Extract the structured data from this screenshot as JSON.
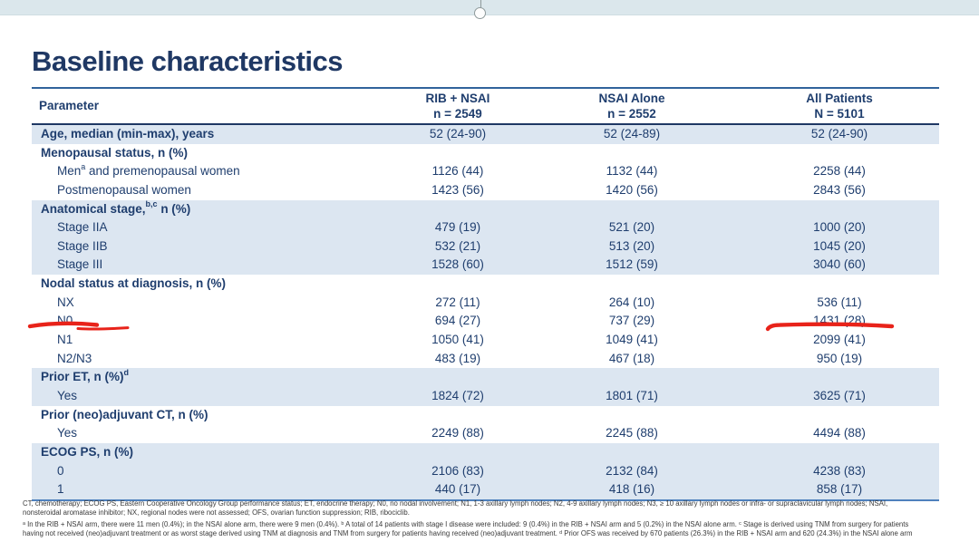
{
  "title": "Baseline characteristics",
  "colors": {
    "title_navy": "#1f3864",
    "table_text_navy": "#1f3e6e",
    "row_shade_blue": "#dce6f1",
    "border_blue": "#31639c",
    "annotation_red": "#e8231a"
  },
  "table": {
    "param_header": "Parameter",
    "columns": [
      {
        "name": "RIB + NSAI",
        "n": "n = 2549"
      },
      {
        "name": "NSAI Alone",
        "n": "n = 2552"
      },
      {
        "name": "All Patients",
        "n": "N = 5101"
      }
    ],
    "rows": [
      {
        "pre": "Age, median (min-max), years",
        "sup": "",
        "post": "",
        "bold": true,
        "indent": false,
        "shaded": true,
        "values": [
          "52 (24-90)",
          "52 (24-89)",
          "52 (24-90)"
        ]
      },
      {
        "pre": "Menopausal status, n (%)",
        "sup": "",
        "post": "",
        "bold": true,
        "indent": false,
        "shaded": false,
        "values": [
          "",
          "",
          ""
        ]
      },
      {
        "pre": "Men",
        "sup": "a",
        "post": " and premenopausal women",
        "bold": false,
        "indent": true,
        "shaded": false,
        "values": [
          "1126 (44)",
          "1132 (44)",
          "2258 (44)"
        ]
      },
      {
        "pre": "Postmenopausal women",
        "sup": "",
        "post": "",
        "bold": false,
        "indent": true,
        "shaded": false,
        "values": [
          "1423 (56)",
          "1420 (56)",
          "2843 (56)"
        ]
      },
      {
        "pre": "Anatomical stage,",
        "sup": "b,c",
        "post": " n (%)",
        "bold": true,
        "indent": false,
        "shaded": true,
        "values": [
          "",
          "",
          ""
        ]
      },
      {
        "pre": "Stage IIA",
        "sup": "",
        "post": "",
        "bold": false,
        "indent": true,
        "shaded": true,
        "values": [
          "479 (19)",
          "521 (20)",
          "1000 (20)"
        ]
      },
      {
        "pre": "Stage IIB",
        "sup": "",
        "post": "",
        "bold": false,
        "indent": true,
        "shaded": true,
        "values": [
          "532 (21)",
          "513 (20)",
          "1045 (20)"
        ]
      },
      {
        "pre": "Stage III",
        "sup": "",
        "post": "",
        "bold": false,
        "indent": true,
        "shaded": true,
        "values": [
          "1528 (60)",
          "1512 (59)",
          "3040 (60)"
        ]
      },
      {
        "pre": "Nodal status at diagnosis, n (%)",
        "sup": "",
        "post": "",
        "bold": true,
        "indent": false,
        "shaded": false,
        "values": [
          "",
          "",
          ""
        ]
      },
      {
        "pre": "NX",
        "sup": "",
        "post": "",
        "bold": false,
        "indent": true,
        "shaded": false,
        "values": [
          "272 (11)",
          "264 (10)",
          "536 (11)"
        ]
      },
      {
        "pre": "N0",
        "sup": "",
        "post": "",
        "bold": false,
        "indent": true,
        "shaded": false,
        "values": [
          "694 (27)",
          "737 (29)",
          "1431 (28)"
        ]
      },
      {
        "pre": "N1",
        "sup": "",
        "post": "",
        "bold": false,
        "indent": true,
        "shaded": false,
        "values": [
          "1050 (41)",
          "1049 (41)",
          "2099 (41)"
        ]
      },
      {
        "pre": "N2/N3",
        "sup": "",
        "post": "",
        "bold": false,
        "indent": true,
        "shaded": false,
        "values": [
          "483 (19)",
          "467 (18)",
          "950 (19)"
        ]
      },
      {
        "pre": "Prior ET, n (%)",
        "sup": "d",
        "post": "",
        "bold": true,
        "indent": false,
        "shaded": true,
        "values": [
          "",
          "",
          ""
        ]
      },
      {
        "pre": "Yes",
        "sup": "",
        "post": "",
        "bold": false,
        "indent": true,
        "shaded": true,
        "values": [
          "1824 (72)",
          "1801 (71)",
          "3625 (71)"
        ]
      },
      {
        "pre": "Prior (neo)adjuvant CT, n (%)",
        "sup": "",
        "post": "",
        "bold": true,
        "indent": false,
        "shaded": false,
        "values": [
          "",
          "",
          ""
        ]
      },
      {
        "pre": "Yes",
        "sup": "",
        "post": "",
        "bold": false,
        "indent": true,
        "shaded": false,
        "values": [
          "2249 (88)",
          "2245 (88)",
          "4494 (88)"
        ]
      },
      {
        "pre": "ECOG PS, n (%)",
        "sup": "",
        "post": "",
        "bold": true,
        "indent": false,
        "shaded": true,
        "values": [
          "",
          "",
          ""
        ]
      },
      {
        "pre": "0",
        "sup": "",
        "post": "",
        "bold": false,
        "indent": true,
        "shaded": true,
        "values": [
          "2106 (83)",
          "2132 (84)",
          "4238 (83)"
        ]
      },
      {
        "pre": "1",
        "sup": "",
        "post": "",
        "bold": false,
        "indent": true,
        "shaded": true,
        "values": [
          "440 (17)",
          "418 (16)",
          "858 (17)"
        ]
      }
    ]
  },
  "annotations": {
    "underlined_items": [
      "N0",
      "1431 (28)"
    ]
  },
  "footnotes": {
    "abbreviations": [
      "CT, chemotherapy; ECOG PS, Eastern Cooperative Oncology Group performance status; ET, endocrine therapy; N0, no nodal involvement; N1, 1-3 axillary lymph nodes; N2, 4-9 axillary lymph nodes; N3, ≥ 10 axillary lymph nodes or infra- or supraclavicular lymph nodes; NSAI,",
      "nonsteroidal aromatase inhibitor; NX, regional nodes were not assessed; OFS, ovarian function suppression; RIB, ribociclib."
    ],
    "notes": [
      "ᵃ In the RIB + NSAI arm, there were 11 men (0.4%); in the NSAI alone arm, there were 9 men (0.4%). ᵇ A total of 14 patients with stage I disease were included: 9 (0.4%) in the RIB + NSAI arm and 5 (0.2%) in the NSAI alone arm. ᶜ Stage is derived using TNM from surgery for patients",
      "having not received (neo)adjuvant treatment or as worst stage derived using TNM at diagnosis and TNM from surgery for patients having received (neo)adjuvant treatment. ᵈ Prior OFS was received by 670 patients (26.3%) in the RIB + NSAI arm and 620 (24.3%) in the NSAI alone arm"
    ]
  }
}
